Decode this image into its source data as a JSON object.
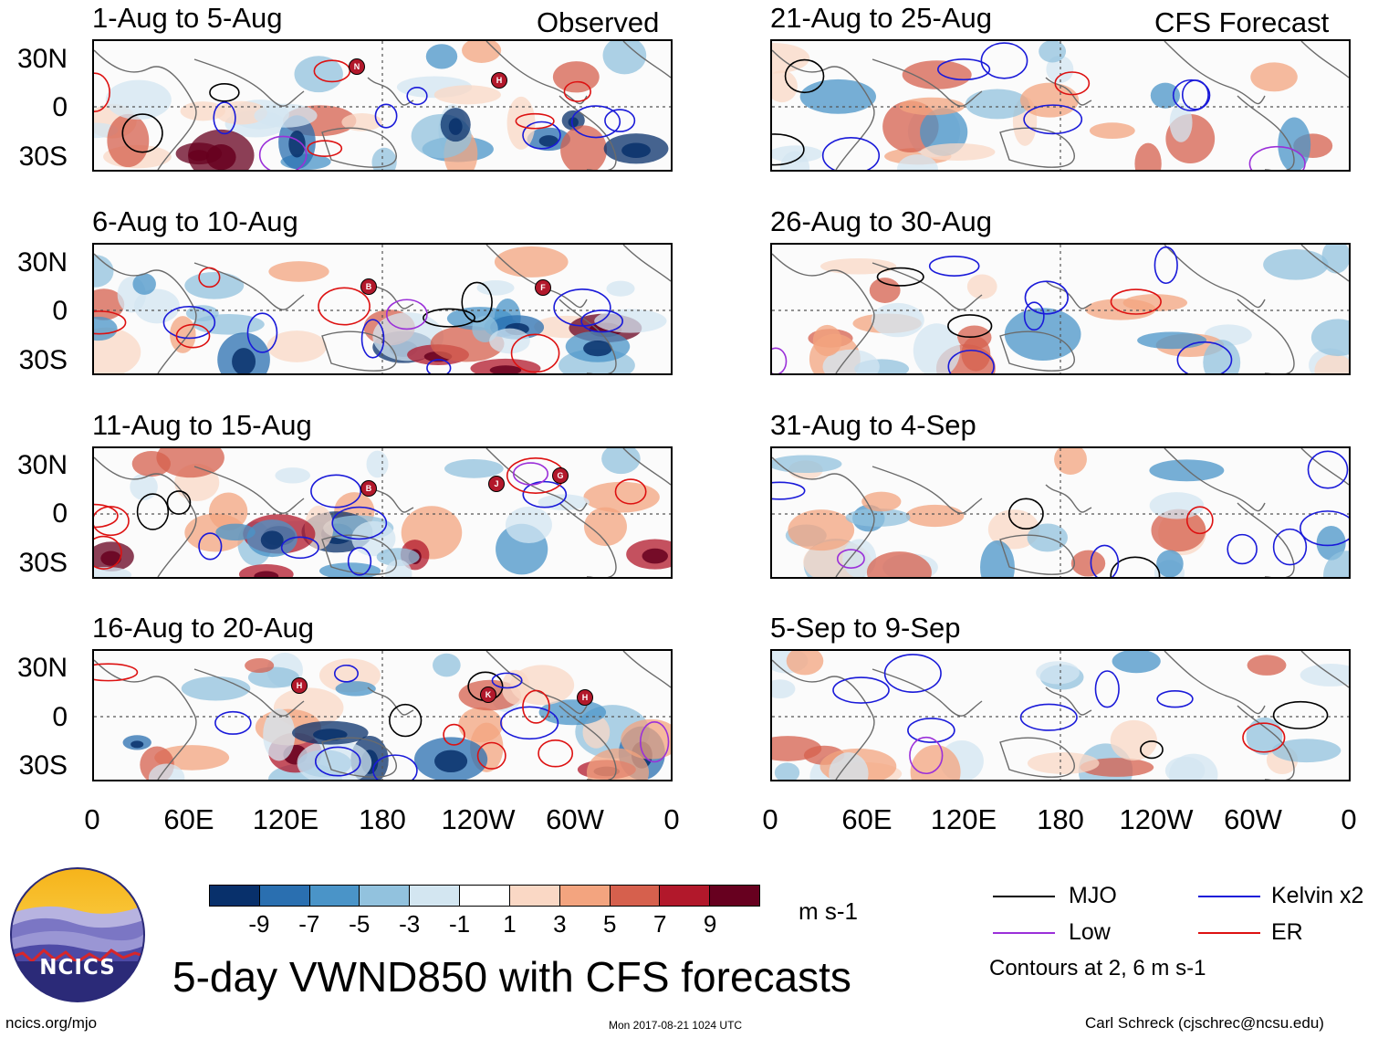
{
  "header": {
    "left_tag": "Observed",
    "right_tag": "CFS Forecast"
  },
  "panels_left": [
    {
      "title": "1-Aug to 5-Aug"
    },
    {
      "title": "6-Aug to 10-Aug"
    },
    {
      "title": "11-Aug to 15-Aug"
    },
    {
      "title": "16-Aug to 20-Aug"
    }
  ],
  "panels_right": [
    {
      "title": "21-Aug to 25-Aug"
    },
    {
      "title": "26-Aug to 30-Aug"
    },
    {
      "title": "31-Aug to 4-Sep"
    },
    {
      "title": "5-Sep to 9-Sep"
    }
  ],
  "lat_labels": [
    "30N",
    "0",
    "30S"
  ],
  "lon_labels": [
    "0",
    "60E",
    "120E",
    "180",
    "120W",
    "60W",
    "0"
  ],
  "storm_labels": {
    "p0": [
      "N",
      "H"
    ],
    "p1": [
      "B",
      "F"
    ],
    "p2": [
      "B",
      "J",
      "G"
    ],
    "p3": [
      "H",
      "K",
      "H"
    ]
  },
  "colorbar": {
    "colors": [
      "#08306b",
      "#2a6fb0",
      "#4a94c8",
      "#92c2de",
      "#d3e6f1",
      "#ffffff",
      "#fad8c5",
      "#f3a47f",
      "#d6604d",
      "#b2182b",
      "#67001f"
    ],
    "labels": [
      "-9",
      "-7",
      "-5",
      "-3",
      "-1",
      "1",
      "3",
      "5",
      "7",
      "9"
    ],
    "units": "m s-1"
  },
  "legend": {
    "items": [
      {
        "label": "MJO",
        "color": "#000000"
      },
      {
        "label": "Kelvin x2",
        "color": "#1a1ad9"
      },
      {
        "label": "Low",
        "color": "#9b30d9"
      },
      {
        "label": "ER",
        "color": "#dd1111"
      }
    ],
    "note": "Contours at 2, 6 m s-1"
  },
  "logo": {
    "text": "NCICS"
  },
  "title": "5-day VWND850 with CFS forecasts",
  "footer": {
    "url": "ncics.org/mjo",
    "timestamp": "Mon 2017-08-21 1024 UTC",
    "credit": "Carl Schreck (cjschrec@ncsu.edu)"
  }
}
